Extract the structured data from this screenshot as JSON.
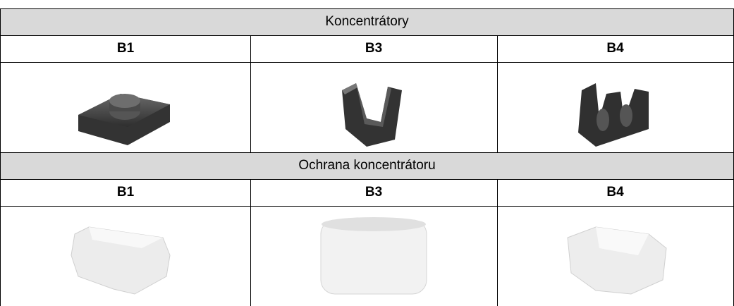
{
  "table": {
    "sections": [
      {
        "title": "Koncentrátory",
        "columns": [
          "B1",
          "B3",
          "B4"
        ]
      },
      {
        "title": "Ochrana koncentrátoru",
        "columns": [
          "B1",
          "B3",
          "B4"
        ]
      }
    ]
  }
}
